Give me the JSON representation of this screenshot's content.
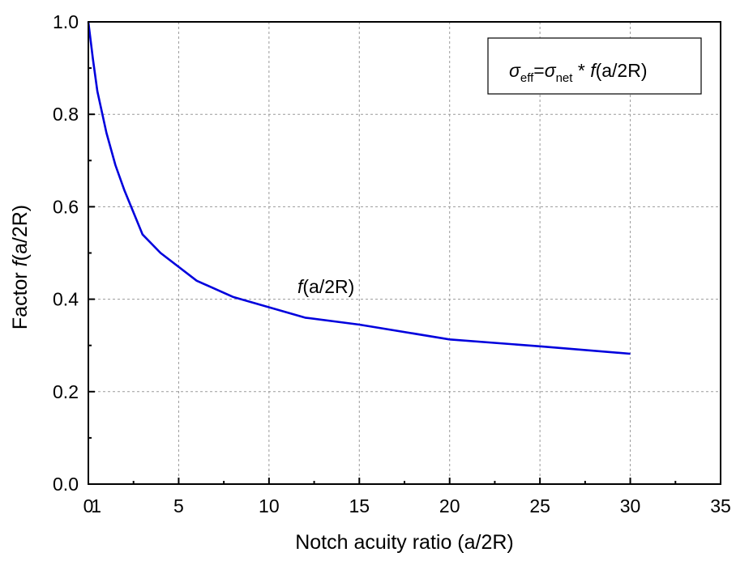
{
  "chart_data": {
    "type": "line",
    "xlabel": "Notch acuity ratio (a/2R)",
    "ylabel_prefix": "Factor ",
    "ylabel_fn": "f",
    "ylabel_arg": "(a/2R)",
    "xlim": [
      0,
      35
    ],
    "ylim": [
      0,
      1.0
    ],
    "x_ticks": [
      "0",
      "5",
      "10",
      "15",
      "20",
      "25",
      "30",
      "35"
    ],
    "x_ticks_values": [
      0,
      5,
      10,
      15,
      20,
      25,
      30,
      35
    ],
    "extra_x_tick": {
      "value": 0.3,
      "label": "1"
    },
    "y_ticks": [
      "0.0",
      "0.2",
      "0.4",
      "0.6",
      "0.8",
      "1.0"
    ],
    "y_ticks_values": [
      0,
      0.2,
      0.4,
      0.6,
      0.8,
      1.0
    ],
    "grid": true,
    "series": [
      {
        "label_fn": "f",
        "label_arg": "(a/2R)",
        "color": "#0000dd",
        "x": [
          0,
          0.25,
          0.5,
          1,
          1.5,
          2,
          3,
          4,
          6,
          8,
          12,
          15,
          20,
          25,
          30
        ],
        "y": [
          1.0,
          0.92,
          0.85,
          0.76,
          0.69,
          0.635,
          0.54,
          0.5,
          0.44,
          0.405,
          0.36,
          0.345,
          0.313,
          0.298,
          0.282
        ]
      }
    ],
    "legend": {
      "position": "top-right",
      "sigma": "σ",
      "eff": "eff",
      "eq": "=",
      "net": "net",
      "star": " * ",
      "fn": "f",
      "arg": "(a/2R)"
    }
  }
}
